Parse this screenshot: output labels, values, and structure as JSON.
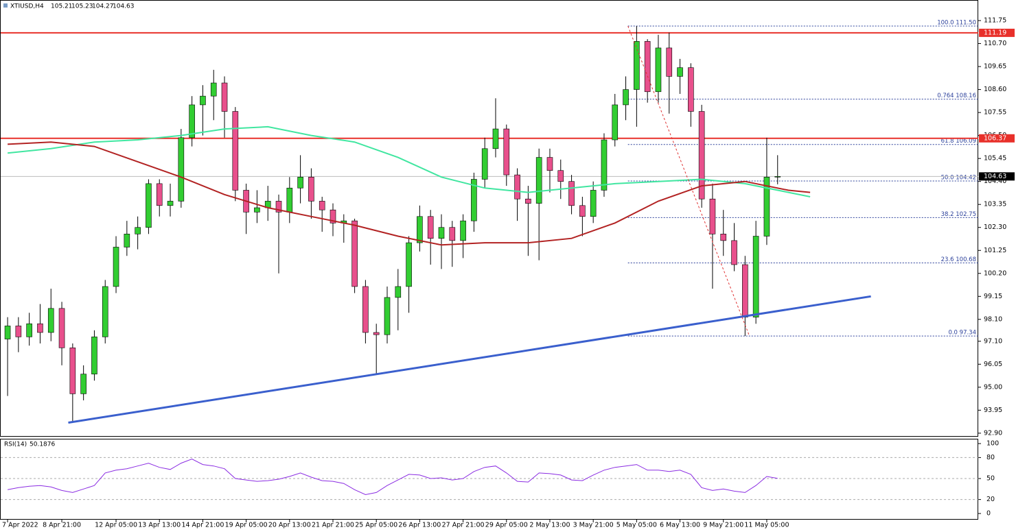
{
  "chart_data": [
    {
      "type": "candlestick",
      "title": "XTIUSD,H4",
      "ohlc": [
        105.21,
        105.23,
        104.27,
        104.63
      ],
      "categories": [
        "7 Apr 2022",
        null,
        null,
        null,
        null,
        "8 Apr 21:00",
        null,
        null,
        null,
        null,
        "12 Apr 05:00",
        null,
        null,
        null,
        "13 Apr 13:00",
        null,
        null,
        null,
        "14 Apr 21:00",
        null,
        null,
        null,
        "19 Apr 05:00",
        null,
        null,
        null,
        "20 Apr 13:00",
        null,
        null,
        null,
        "21 Apr 21:00",
        null,
        null,
        null,
        "25 Apr 05:00",
        null,
        null,
        null,
        "26 Apr 13:00",
        null,
        null,
        null,
        "27 Apr 21:00",
        null,
        null,
        null,
        "29 Apr 05:00",
        null,
        null,
        null,
        "2 May 13:00",
        null,
        null,
        null,
        "3 May 21:00",
        null,
        null,
        null,
        "5 May 05:00",
        null,
        null,
        null,
        "6 May 13:00",
        null,
        null,
        null,
        "9 May 21:00",
        null,
        null,
        null,
        "11 May 05:00",
        null
      ],
      "open": [
        97.2,
        97.8,
        97.3,
        97.9,
        97.5,
        98.6,
        96.8,
        94.7,
        95.6,
        97.3,
        99.6,
        101.4,
        102.0,
        102.3,
        104.3,
        103.3,
        103.5,
        106.4,
        107.9,
        108.3,
        108.9,
        107.6,
        104.0,
        103.0,
        103.2,
        103.5,
        103.0,
        104.1,
        104.6,
        103.5,
        103.1,
        102.5,
        102.6,
        99.6,
        97.5,
        97.4,
        99.1,
        99.6,
        101.6,
        102.8,
        101.8,
        102.3,
        101.7,
        102.6,
        104.5,
        105.9,
        106.8,
        104.7,
        103.6,
        103.4,
        105.5,
        104.9,
        104.4,
        103.3,
        102.8,
        104.0,
        106.3,
        107.9,
        108.6,
        110.8,
        108.5,
        110.5,
        109.2,
        109.6,
        107.6,
        103.6,
        102.0,
        101.7,
        100.6,
        98.2,
        101.9,
        104.6
      ],
      "high": [
        98.2,
        98.2,
        98.4,
        98.8,
        99.5,
        98.9,
        97.0,
        96.0,
        97.6,
        99.9,
        101.9,
        102.6,
        102.8,
        104.5,
        104.5,
        104.3,
        106.8,
        108.3,
        108.8,
        109.5,
        109.2,
        107.8,
        104.3,
        104.0,
        104.2,
        103.8,
        104.6,
        105.6,
        105.0,
        103.7,
        103.4,
        102.9,
        102.7,
        99.9,
        97.9,
        99.6,
        100.4,
        101.9,
        103.3,
        103.1,
        102.9,
        102.6,
        102.9,
        104.8,
        106.4,
        108.2,
        107.0,
        105.0,
        104.2,
        105.9,
        105.9,
        105.4,
        104.7,
        103.7,
        104.4,
        106.6,
        108.4,
        109.2,
        111.5,
        110.9,
        111.1,
        111.2,
        110.0,
        109.8,
        107.9,
        104.3,
        103.1,
        102.5,
        101.0,
        102.6,
        106.4,
        105.6
      ],
      "low": [
        94.6,
        96.6,
        96.9,
        97.0,
        97.1,
        96.0,
        93.38,
        94.4,
        95.3,
        97.0,
        99.3,
        101.0,
        101.3,
        102.0,
        102.8,
        102.8,
        103.2,
        106.0,
        106.5,
        107.2,
        106.4,
        103.5,
        102.0,
        102.5,
        102.6,
        100.2,
        102.5,
        103.4,
        102.7,
        102.1,
        101.9,
        101.6,
        99.3,
        97.0,
        95.6,
        97.0,
        97.6,
        98.4,
        101.2,
        100.6,
        100.4,
        100.5,
        100.9,
        102.1,
        104.1,
        105.5,
        104.2,
        102.6,
        101.0,
        100.8,
        103.9,
        103.6,
        102.9,
        101.9,
        102.5,
        103.7,
        106.0,
        107.2,
        106.9,
        108.0,
        108.0,
        107.5,
        108.4,
        106.9,
        103.2,
        99.5,
        101.0,
        100.3,
        97.34,
        97.9,
        101.5,
        104.27
      ],
      "close": [
        97.8,
        97.3,
        97.9,
        97.5,
        98.6,
        96.8,
        94.7,
        95.6,
        97.3,
        99.6,
        101.4,
        102.0,
        102.3,
        104.3,
        103.3,
        103.5,
        106.4,
        107.9,
        108.3,
        108.9,
        107.6,
        104.0,
        103.0,
        103.2,
        103.5,
        103.0,
        104.1,
        104.6,
        103.5,
        103.1,
        102.5,
        102.6,
        99.6,
        97.5,
        97.4,
        99.1,
        99.6,
        101.6,
        102.8,
        101.8,
        102.3,
        101.7,
        102.6,
        104.5,
        105.9,
        106.8,
        104.7,
        103.6,
        103.4,
        105.5,
        104.9,
        104.4,
        103.3,
        102.8,
        104.0,
        106.3,
        107.9,
        108.6,
        110.8,
        108.5,
        110.5,
        109.2,
        109.6,
        107.6,
        103.6,
        102.0,
        101.7,
        100.6,
        98.2,
        101.9,
        104.6,
        104.63
      ],
      "up_color": "#32cd32",
      "down_color": "#e8508c",
      "xlim": [
        -0.7,
        89.5
      ],
      "ylim": [
        92.77,
        112.69
      ],
      "yticks": [
        111.75,
        {
          "value": 110.7,
          "label": "110.70"
        },
        109.65,
        {
          "value": 108.6,
          "label": "108.60"
        },
        107.55,
        {
          "value": 106.5,
          "label": "106.50"
        },
        105.45,
        {
          "value": 104.4,
          "label": "104.40"
        },
        103.35,
        {
          "value": 102.3,
          "label": "102.30"
        },
        101.25,
        {
          "value": 100.2,
          "label": "100.20"
        },
        99.15,
        {
          "value": 98.1,
          "label": "98.10"
        },
        {
          "value": 97.1,
          "label": "97.10"
        },
        96.05,
        {
          "value": 95,
          "label": "95.00"
        },
        93.95,
        {
          "value": 92.9,
          "label": "92.90"
        }
      ],
      "lines": [
        {
          "color": "#40e6a0",
          "width": 2,
          "x": [
            0,
            4,
            8,
            12,
            16,
            20,
            24,
            28,
            32,
            36,
            40,
            44,
            48,
            52,
            56,
            60,
            64,
            68,
            72,
            74
          ],
          "values": [
            105.7,
            105.9,
            106.2,
            106.3,
            106.5,
            106.8,
            106.9,
            106.5,
            106.2,
            105.5,
            104.6,
            104.1,
            103.9,
            104.1,
            104.3,
            104.4,
            104.5,
            104.3,
            103.9,
            103.7
          ]
        },
        {
          "color": "#b22222",
          "width": 2,
          "x": [
            0,
            4,
            8,
            12,
            16,
            20,
            24,
            28,
            32,
            36,
            40,
            44,
            48,
            52,
            56,
            60,
            64,
            68,
            72,
            74
          ],
          "values": [
            106.1,
            106.2,
            106.0,
            105.3,
            104.6,
            103.8,
            103.2,
            102.8,
            102.4,
            101.9,
            101.5,
            101.6,
            101.6,
            101.8,
            102.5,
            103.5,
            104.2,
            104.4,
            104.0,
            103.9
          ]
        },
        {
          "color": "#3a5fcd",
          "width": 3,
          "x": [
            5.6,
            79.6
          ],
          "values": [
            93.38,
            99.15
          ]
        },
        {
          "color": "#e03030",
          "width": 1,
          "dash": true,
          "x": [
            57.2,
            68.4
          ],
          "values": [
            111.5,
            97.34
          ]
        }
      ],
      "hlines": [
        {
          "value": 111.19,
          "color": "#e8302a"
        },
        {
          "value": 106.37,
          "color": "#e8302a"
        },
        {
          "value": 104.63,
          "color": "#000000"
        }
      ],
      "fib_start": 57.2,
      "fib_color": "#2a3f9a",
      "fib_levels": [
        {
          "label": "100.0 111.50",
          "value": 111.5
        },
        {
          "label": "0.764 108.16",
          "value": 108.16
        },
        {
          "label": "61.8 106.09",
          "value": 106.09
        },
        {
          "label": "50.0 104.42",
          "value": 104.42
        },
        {
          "label": "38.2 102.75",
          "value": 102.75
        },
        {
          "label": "23.6 100.68",
          "value": 100.68
        },
        {
          "label": "0.0 97.34",
          "value": 97.34
        }
      ]
    },
    {
      "type": "line",
      "title": "RSI(14)",
      "last": 50.1876,
      "color": "#8a2be2",
      "values": [
        34,
        37,
        39,
        40,
        38,
        33,
        30,
        35,
        40,
        58,
        62,
        64,
        68,
        72,
        66,
        63,
        72,
        78,
        70,
        68,
        64,
        50,
        48,
        46,
        47,
        49,
        53,
        58,
        52,
        47,
        46,
        43,
        34,
        27,
        30,
        40,
        48,
        56,
        55,
        50,
        51,
        48,
        50,
        60,
        66,
        68,
        58,
        46,
        45,
        58,
        57,
        55,
        48,
        47,
        55,
        62,
        66,
        68,
        70,
        62,
        62,
        60,
        62,
        56,
        37,
        33,
        35,
        32,
        30,
        40,
        53,
        50.1876
      ],
      "ylim": [
        -8.8,
        105.9
      ],
      "yticks": [
        100,
        80,
        50,
        20,
        0
      ]
    }
  ]
}
